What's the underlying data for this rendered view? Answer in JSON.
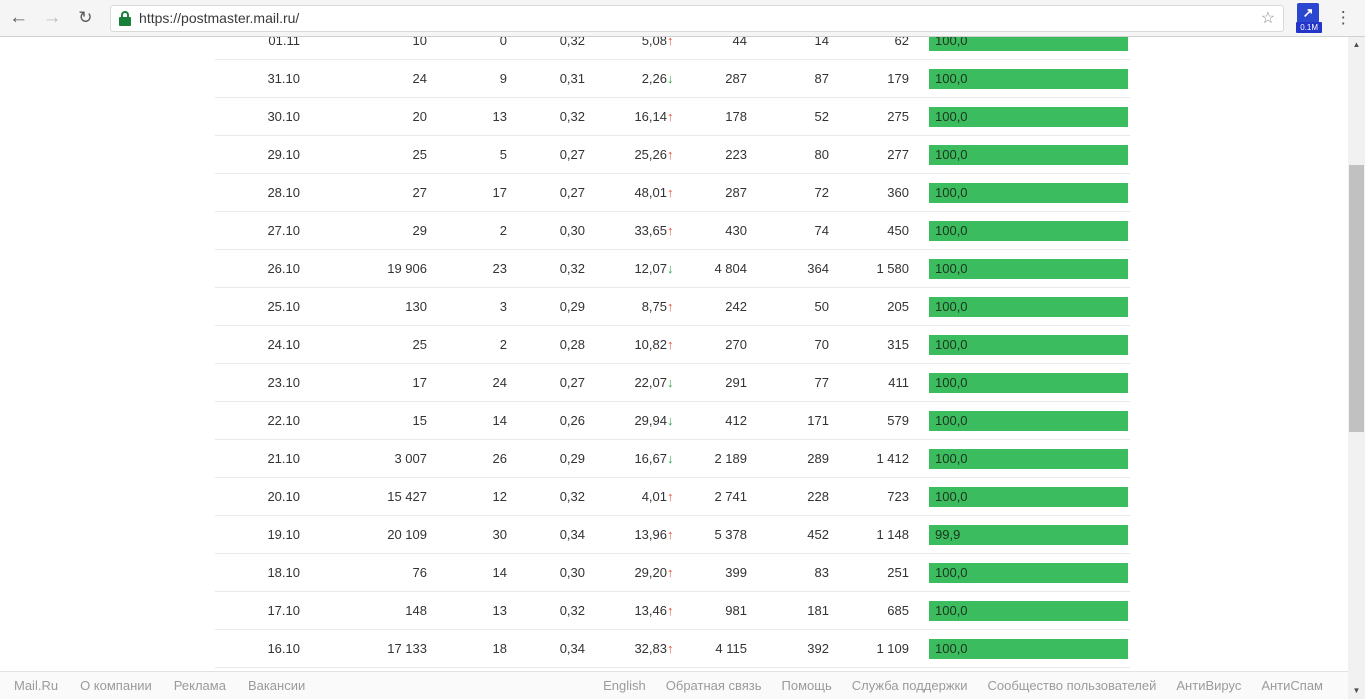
{
  "browser": {
    "url": "https://postmaster.mail.ru/",
    "back_glyph": "←",
    "forward_glyph": "→",
    "reload_glyph": "↻",
    "star_glyph": "☆",
    "menu_glyph": "⋮",
    "extension_glyph": "↗",
    "extension_badge": "0.1M",
    "accent_lock_color": "#188038",
    "extension_color": "#2b47cf"
  },
  "table": {
    "trend_up_glyph": "↑",
    "trend_down_glyph": "↓",
    "trend_up_color": "#e2523a",
    "trend_down_color": "#2aa746",
    "bar_color": "#3abc5f",
    "rows": [
      {
        "date": "01.11",
        "values": [
          "10",
          "0",
          "0,32"
        ],
        "pct": "5,08",
        "trend": "up",
        "values2": [
          "44",
          "14",
          "62"
        ],
        "bar_label": "100,0",
        "bar_pct": 100.0
      },
      {
        "date": "31.10",
        "values": [
          "24",
          "9",
          "0,31"
        ],
        "pct": "2,26",
        "trend": "down",
        "values2": [
          "287",
          "87",
          "179"
        ],
        "bar_label": "100,0",
        "bar_pct": 100.0
      },
      {
        "date": "30.10",
        "values": [
          "20",
          "13",
          "0,32"
        ],
        "pct": "16,14",
        "trend": "up",
        "values2": [
          "178",
          "52",
          "275"
        ],
        "bar_label": "100,0",
        "bar_pct": 100.0
      },
      {
        "date": "29.10",
        "values": [
          "25",
          "5",
          "0,27"
        ],
        "pct": "25,26",
        "trend": "up",
        "values2": [
          "223",
          "80",
          "277"
        ],
        "bar_label": "100,0",
        "bar_pct": 100.0
      },
      {
        "date": "28.10",
        "values": [
          "27",
          "17",
          "0,27"
        ],
        "pct": "48,01",
        "trend": "up",
        "values2": [
          "287",
          "72",
          "360"
        ],
        "bar_label": "100,0",
        "bar_pct": 100.0
      },
      {
        "date": "27.10",
        "values": [
          "29",
          "2",
          "0,30"
        ],
        "pct": "33,65",
        "trend": "up",
        "values2": [
          "430",
          "74",
          "450"
        ],
        "bar_label": "100,0",
        "bar_pct": 100.0
      },
      {
        "date": "26.10",
        "values": [
          "19 906",
          "23",
          "0,32"
        ],
        "pct": "12,07",
        "trend": "down",
        "values2": [
          "4 804",
          "364",
          "1 580"
        ],
        "bar_label": "100,0",
        "bar_pct": 100.0
      },
      {
        "date": "25.10",
        "values": [
          "130",
          "3",
          "0,29"
        ],
        "pct": "8,75",
        "trend": "up",
        "values2": [
          "242",
          "50",
          "205"
        ],
        "bar_label": "100,0",
        "bar_pct": 100.0
      },
      {
        "date": "24.10",
        "values": [
          "25",
          "2",
          "0,28"
        ],
        "pct": "10,82",
        "trend": "up",
        "values2": [
          "270",
          "70",
          "315"
        ],
        "bar_label": "100,0",
        "bar_pct": 100.0
      },
      {
        "date": "23.10",
        "values": [
          "17",
          "24",
          "0,27"
        ],
        "pct": "22,07",
        "trend": "down",
        "values2": [
          "291",
          "77",
          "411"
        ],
        "bar_label": "100,0",
        "bar_pct": 100.0
      },
      {
        "date": "22.10",
        "values": [
          "15",
          "14",
          "0,26"
        ],
        "pct": "29,94",
        "trend": "down",
        "values2": [
          "412",
          "171",
          "579"
        ],
        "bar_label": "100,0",
        "bar_pct": 100.0
      },
      {
        "date": "21.10",
        "values": [
          "3 007",
          "26",
          "0,29"
        ],
        "pct": "16,67",
        "trend": "down",
        "values2": [
          "2 189",
          "289",
          "1 412"
        ],
        "bar_label": "100,0",
        "bar_pct": 100.0
      },
      {
        "date": "20.10",
        "values": [
          "15 427",
          "12",
          "0,32"
        ],
        "pct": "4,01",
        "trend": "up",
        "values2": [
          "2 741",
          "228",
          "723"
        ],
        "bar_label": "100,0",
        "bar_pct": 100.0
      },
      {
        "date": "19.10",
        "values": [
          "20 109",
          "30",
          "0,34"
        ],
        "pct": "13,96",
        "trend": "up",
        "values2": [
          "5 378",
          "452",
          "1 148"
        ],
        "bar_label": "99,9",
        "bar_pct": 99.9
      },
      {
        "date": "18.10",
        "values": [
          "76",
          "14",
          "0,30"
        ],
        "pct": "29,20",
        "trend": "up",
        "values2": [
          "399",
          "83",
          "251"
        ],
        "bar_label": "100,0",
        "bar_pct": 100.0
      },
      {
        "date": "17.10",
        "values": [
          "148",
          "13",
          "0,32"
        ],
        "pct": "13,46",
        "trend": "up",
        "values2": [
          "981",
          "181",
          "685"
        ],
        "bar_label": "100,0",
        "bar_pct": 100.0
      },
      {
        "date": "16.10",
        "values": [
          "17 133",
          "18",
          "0,34"
        ],
        "pct": "32,83",
        "trend": "up",
        "values2": [
          "4 115",
          "392",
          "1 109"
        ],
        "bar_label": "100,0",
        "bar_pct": 100.0
      }
    ]
  },
  "footer": {
    "left": [
      "Mail.Ru",
      "О компании",
      "Реклама",
      "Вакансии"
    ],
    "right": [
      "English",
      "Обратная связь",
      "Помощь",
      "Служба поддержки",
      "Сообщество пользователей",
      "АнтиВирус",
      "АнтиСпам"
    ]
  },
  "scrollbar": {
    "up_glyph": "▲",
    "down_glyph": "▼"
  }
}
